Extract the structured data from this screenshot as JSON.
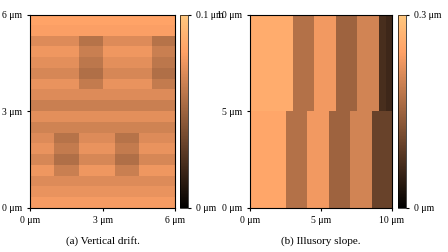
{
  "chart_data": [
    {
      "type": "heatmap",
      "title": "(a) Vertical drift.",
      "xlim": [
        0,
        6
      ],
      "ylim": [
        0,
        6
      ],
      "xticks": [
        {
          "value": 0,
          "label": "0 μm"
        },
        {
          "value": 3,
          "label": "3 μm"
        },
        {
          "value": 6,
          "label": "6 μm"
        }
      ],
      "yticks": [
        {
          "value": 0,
          "label": "0 μm"
        },
        {
          "value": 3,
          "label": "3 μm"
        },
        {
          "value": 6,
          "label": "6 μm"
        }
      ],
      "colorbar_range": [
        0,
        0.1
      ],
      "colorbar_ticks": [
        {
          "value": 0,
          "label": "0 μm"
        },
        {
          "value": 0.1,
          "label": "0.1 μm"
        }
      ],
      "z": [
        [
          0.078,
          0.078,
          0.078,
          0.078,
          0.078,
          0.078,
          0.078,
          0.078,
          0.078,
          0.078,
          0.078,
          0.078
        ],
        [
          0.074,
          0.074,
          0.074,
          0.074,
          0.074,
          0.074,
          0.074,
          0.074,
          0.074,
          0.074,
          0.074,
          0.074
        ],
        [
          0.07,
          0.07,
          0.07,
          0.07,
          0.07,
          0.07,
          0.07,
          0.07,
          0.07,
          0.07,
          0.07,
          0.07
        ],
        [
          0.076,
          0.076,
          0.064,
          0.064,
          0.076,
          0.076,
          0.076,
          0.064,
          0.064,
          0.076,
          0.076,
          0.076
        ],
        [
          0.068,
          0.068,
          0.056,
          0.056,
          0.068,
          0.068,
          0.068,
          0.056,
          0.056,
          0.068,
          0.068,
          0.068
        ],
        [
          0.074,
          0.074,
          0.062,
          0.062,
          0.074,
          0.074,
          0.074,
          0.062,
          0.062,
          0.074,
          0.074,
          0.074
        ],
        [
          0.07,
          0.07,
          0.058,
          0.058,
          0.07,
          0.07,
          0.07,
          0.058,
          0.058,
          0.07,
          0.07,
          0.07
        ],
        [
          0.066,
          0.066,
          0.066,
          0.066,
          0.066,
          0.066,
          0.066,
          0.066,
          0.066,
          0.066,
          0.066,
          0.066
        ],
        [
          0.072,
          0.072,
          0.072,
          0.072,
          0.072,
          0.072,
          0.072,
          0.072,
          0.072,
          0.072,
          0.072,
          0.072
        ],
        [
          0.064,
          0.064,
          0.064,
          0.064,
          0.064,
          0.064,
          0.064,
          0.064,
          0.064,
          0.064,
          0.064,
          0.064
        ],
        [
          0.07,
          0.07,
          0.07,
          0.07,
          0.07,
          0.07,
          0.07,
          0.07,
          0.07,
          0.07,
          0.07,
          0.07
        ],
        [
          0.074,
          0.074,
          0.074,
          0.074,
          0.062,
          0.062,
          0.074,
          0.074,
          0.074,
          0.074,
          0.062,
          0.062
        ],
        [
          0.068,
          0.068,
          0.068,
          0.068,
          0.056,
          0.056,
          0.068,
          0.068,
          0.068,
          0.068,
          0.056,
          0.056
        ],
        [
          0.072,
          0.072,
          0.072,
          0.072,
          0.06,
          0.06,
          0.072,
          0.072,
          0.072,
          0.072,
          0.06,
          0.06
        ],
        [
          0.076,
          0.076,
          0.076,
          0.076,
          0.064,
          0.064,
          0.076,
          0.076,
          0.076,
          0.076,
          0.064,
          0.064
        ],
        [
          0.07,
          0.07,
          0.07,
          0.07,
          0.058,
          0.058,
          0.07,
          0.07,
          0.07,
          0.07,
          0.058,
          0.058
        ],
        [
          0.08,
          0.08,
          0.08,
          0.08,
          0.08,
          0.08,
          0.08,
          0.08,
          0.08,
          0.08,
          0.08,
          0.08
        ],
        [
          0.082,
          0.082,
          0.082,
          0.082,
          0.082,
          0.082,
          0.082,
          0.082,
          0.082,
          0.082,
          0.082,
          0.082
        ]
      ]
    },
    {
      "type": "heatmap",
      "title": "(b) Illusory slope.",
      "xlim": [
        0,
        10
      ],
      "ylim": [
        0,
        10
      ],
      "xticks": [
        {
          "value": 0,
          "label": "0 μm"
        },
        {
          "value": 5,
          "label": "5 μm"
        },
        {
          "value": 10,
          "label": "10 μm"
        }
      ],
      "yticks": [
        {
          "value": 0,
          "label": "0 μm"
        },
        {
          "value": 5,
          "label": "5 μm"
        },
        {
          "value": 10,
          "label": "10 μm"
        }
      ],
      "colorbar_range": [
        0,
        0.3
      ],
      "colorbar_ticks": [
        {
          "value": 0,
          "label": "0 μm"
        },
        {
          "value": 0.3,
          "label": "0.3 μm"
        }
      ],
      "z": [
        [
          0.25,
          0.25,
          0.25,
          0.25,
          0.25,
          0.17,
          0.17,
          0.17,
          0.23,
          0.23,
          0.23,
          0.15,
          0.15,
          0.15,
          0.2,
          0.2,
          0.2,
          0.1,
          0.1,
          0.1
        ],
        [
          0.25,
          0.25,
          0.25,
          0.25,
          0.25,
          0.17,
          0.17,
          0.17,
          0.23,
          0.23,
          0.23,
          0.15,
          0.15,
          0.15,
          0.2,
          0.2,
          0.2,
          0.1,
          0.1,
          0.1
        ],
        [
          0.25,
          0.25,
          0.25,
          0.25,
          0.25,
          0.17,
          0.17,
          0.17,
          0.23,
          0.23,
          0.23,
          0.15,
          0.15,
          0.15,
          0.2,
          0.2,
          0.2,
          0.1,
          0.1,
          0.1
        ],
        [
          0.25,
          0.25,
          0.25,
          0.25,
          0.25,
          0.17,
          0.17,
          0.17,
          0.23,
          0.23,
          0.23,
          0.15,
          0.15,
          0.15,
          0.2,
          0.2,
          0.2,
          0.1,
          0.1,
          0.1
        ],
        [
          0.25,
          0.25,
          0.25,
          0.25,
          0.25,
          0.17,
          0.17,
          0.17,
          0.23,
          0.23,
          0.23,
          0.15,
          0.15,
          0.15,
          0.2,
          0.2,
          0.2,
          0.1,
          0.1,
          0.1
        ],
        [
          0.26,
          0.26,
          0.26,
          0.26,
          0.26,
          0.26,
          0.17,
          0.17,
          0.17,
          0.23,
          0.23,
          0.23,
          0.15,
          0.15,
          0.15,
          0.2,
          0.2,
          0.2,
          0.07,
          0.06
        ],
        [
          0.26,
          0.26,
          0.26,
          0.26,
          0.26,
          0.26,
          0.17,
          0.17,
          0.17,
          0.23,
          0.23,
          0.23,
          0.15,
          0.15,
          0.15,
          0.2,
          0.2,
          0.2,
          0.07,
          0.06
        ],
        [
          0.26,
          0.26,
          0.26,
          0.26,
          0.26,
          0.26,
          0.17,
          0.17,
          0.17,
          0.23,
          0.23,
          0.23,
          0.15,
          0.15,
          0.15,
          0.2,
          0.2,
          0.2,
          0.07,
          0.06
        ],
        [
          0.26,
          0.26,
          0.26,
          0.26,
          0.26,
          0.26,
          0.17,
          0.17,
          0.17,
          0.23,
          0.23,
          0.23,
          0.15,
          0.15,
          0.15,
          0.2,
          0.2,
          0.2,
          0.07,
          0.06
        ],
        [
          0.26,
          0.26,
          0.26,
          0.26,
          0.26,
          0.26,
          0.17,
          0.17,
          0.17,
          0.23,
          0.23,
          0.23,
          0.15,
          0.15,
          0.15,
          0.2,
          0.2,
          0.2,
          0.07,
          0.06
        ]
      ]
    }
  ]
}
